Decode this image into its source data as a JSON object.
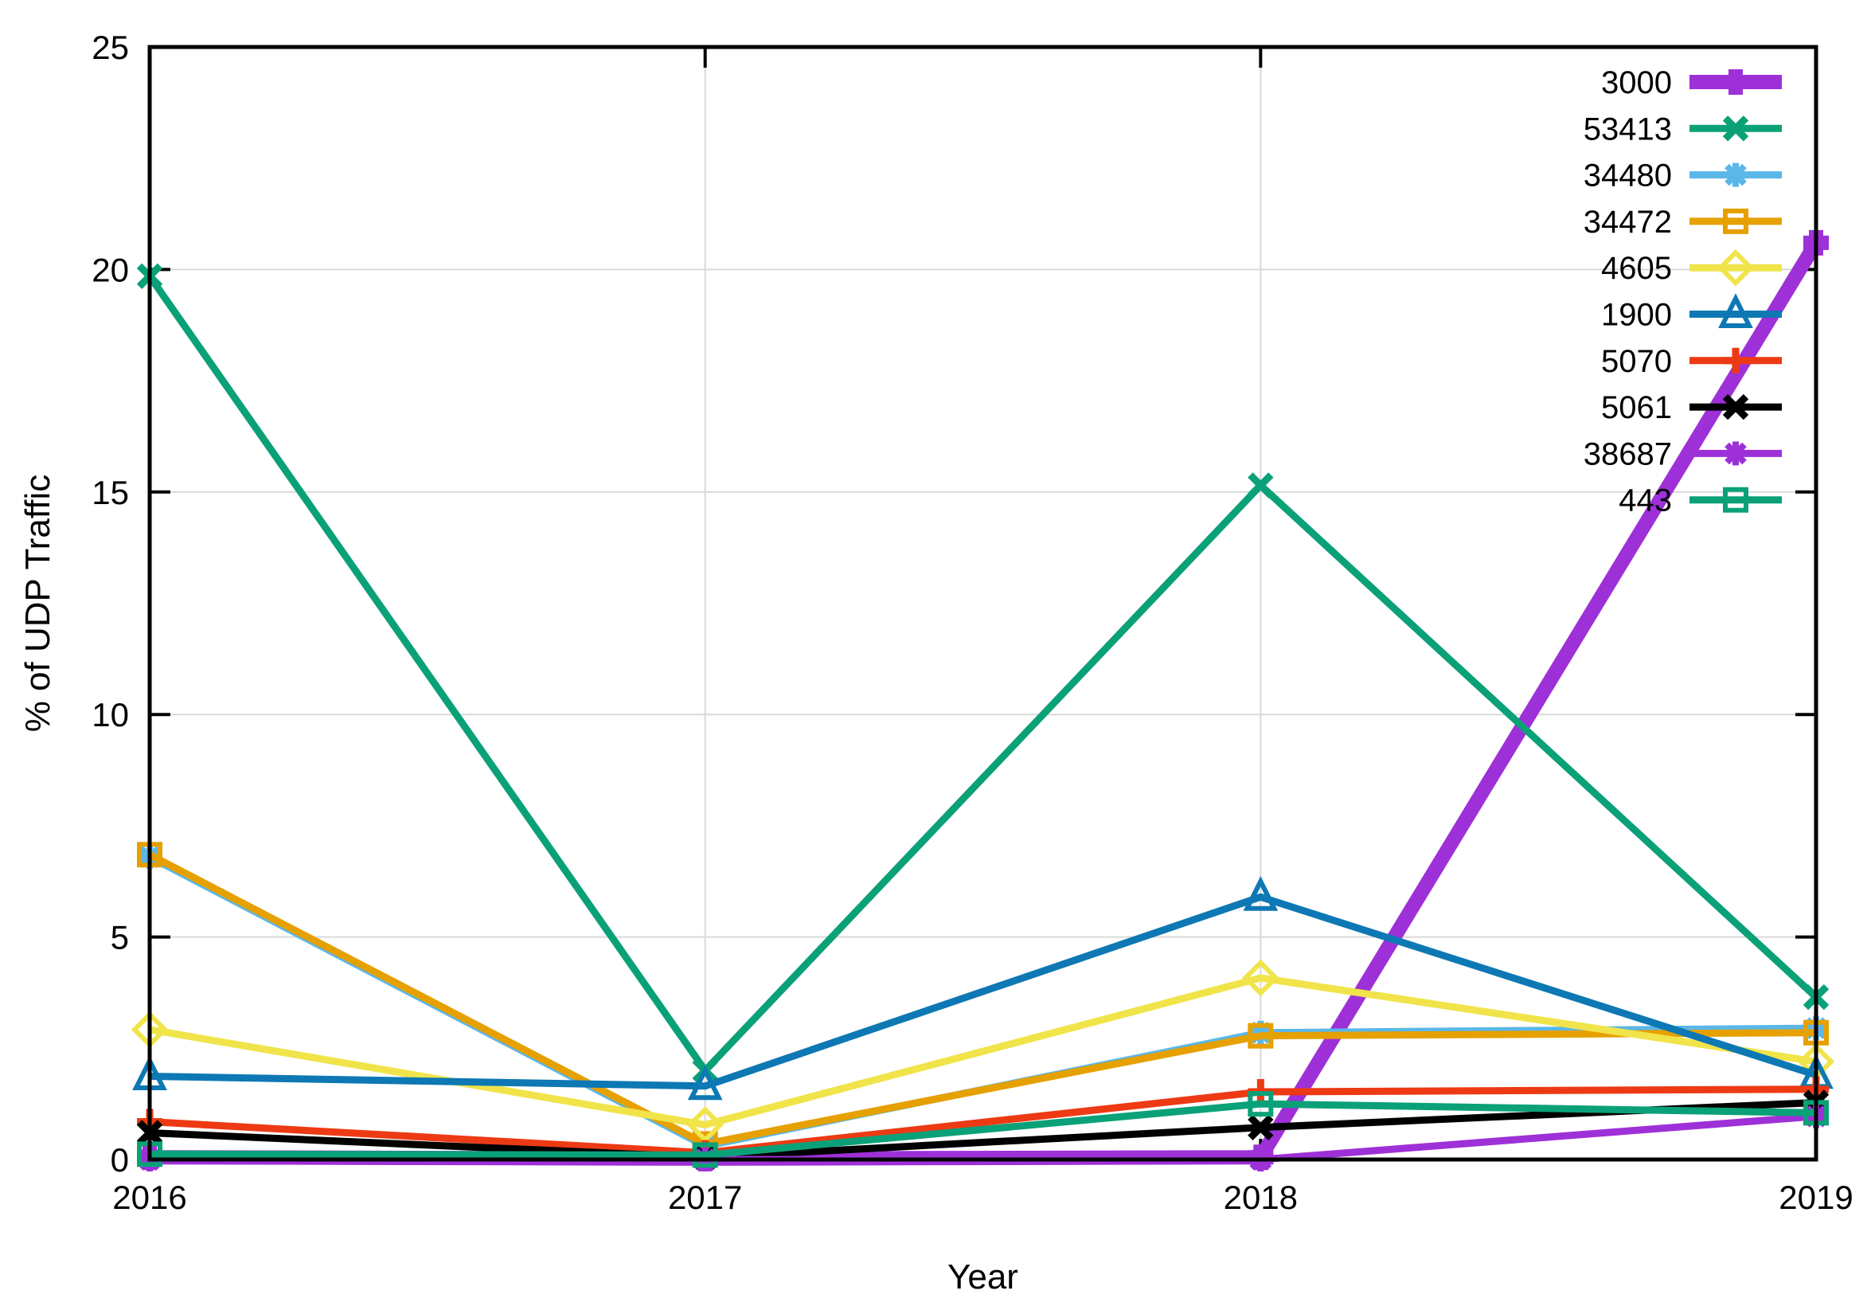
{
  "chart_data": {
    "type": "line",
    "xlabel": "Year",
    "ylabel": "% of UDP Traffic",
    "title": "",
    "xlim": [
      2016,
      2019
    ],
    "ylim": [
      0,
      25
    ],
    "x_ticks": [
      2016,
      2017,
      2018,
      2019
    ],
    "y_ticks": [
      0,
      5,
      10,
      15,
      20,
      25
    ],
    "grid": true,
    "legend_position": "top-right-inside",
    "x": [
      2016,
      2017,
      2018,
      2019
    ],
    "series": [
      {
        "name": "3000",
        "color": "#9e30d8",
        "marker": "plus",
        "width": 18,
        "values": [
          0.05,
          0.02,
          0.05,
          20.6
        ]
      },
      {
        "name": "53413",
        "color": "#0ba178",
        "marker": "cross",
        "width": 9,
        "values": [
          19.85,
          2.0,
          15.15,
          3.65
        ]
      },
      {
        "name": "34480",
        "color": "#5ab7e8",
        "marker": "asterisk",
        "width": 9,
        "values": [
          6.8,
          0.3,
          2.85,
          2.95
        ]
      },
      {
        "name": "34472",
        "color": "#e6a000",
        "marker": "square",
        "width": 9,
        "values": [
          6.85,
          0.35,
          2.78,
          2.85
        ]
      },
      {
        "name": "4605",
        "color": "#f0e44a",
        "marker": "diamond",
        "width": 9,
        "values": [
          2.92,
          0.78,
          4.08,
          2.2
        ]
      },
      {
        "name": "1900",
        "color": "#0d78b4",
        "marker": "triangle",
        "width": 9,
        "values": [
          1.87,
          1.65,
          5.9,
          1.9
        ]
      },
      {
        "name": "5070",
        "color": "#ed3a14",
        "marker": "plus",
        "width": 9,
        "values": [
          0.85,
          0.15,
          1.52,
          1.58
        ]
      },
      {
        "name": "5061",
        "color": "#000000",
        "marker": "cross",
        "width": 9,
        "values": [
          0.6,
          0.05,
          0.72,
          1.28
        ]
      },
      {
        "name": "38687",
        "color": "#9e30d8",
        "marker": "asterisk",
        "width": 9,
        "values": [
          0.0,
          0.0,
          0.0,
          0.97
        ]
      },
      {
        "name": "443",
        "color": "#0ba178",
        "marker": "square",
        "width": 9,
        "values": [
          0.12,
          0.1,
          1.25,
          1.05
        ]
      }
    ]
  },
  "style_colors": {
    "grid": "#d9d9d9",
    "border": "#000000",
    "text": "#000000"
  }
}
